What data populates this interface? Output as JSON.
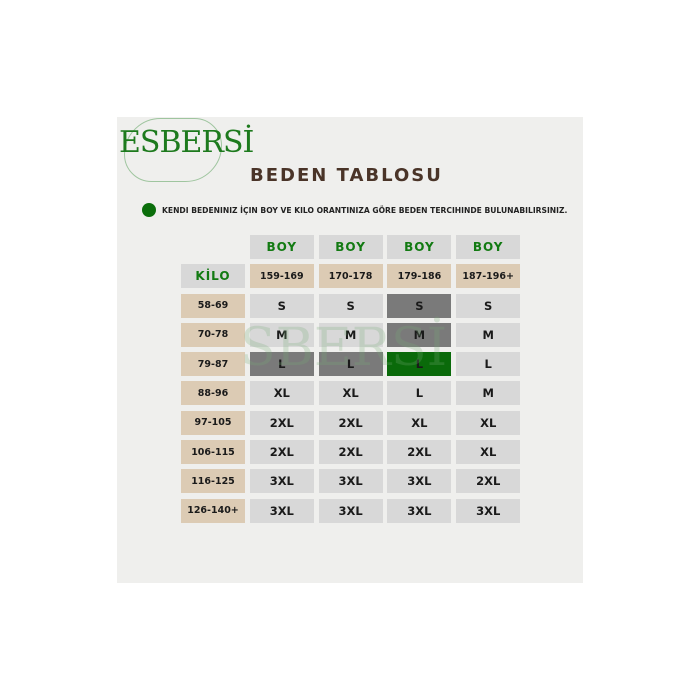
{
  "brand": {
    "logo_text": "ESBERSİ"
  },
  "title": "BEDEN TABLOSU",
  "note": "KENDI BEDENINIZ İÇIN BOY VE KILO ORANTINIZA GÖRE BEDEN TERCIHINDE BULUNABILIRSINIZ.",
  "colors": {
    "accent_green": "#0a6a0a",
    "highlight_gray": "#7a7a7a",
    "range_beige": "#dccbb4",
    "cell_gray": "#d8d8d8",
    "title_brown": "#4a3428"
  },
  "table": {
    "boy_label": "BOY",
    "kilo_label": "KİLO",
    "heights": [
      "159-169",
      "170-178",
      "179-186",
      "187-196+"
    ],
    "rows": [
      {
        "kilo": "58-69",
        "sizes": [
          "S",
          "S",
          "S",
          "S"
        ],
        "hl": [
          "",
          "",
          "dark",
          ""
        ]
      },
      {
        "kilo": "70-78",
        "sizes": [
          "M",
          "M",
          "M",
          "M"
        ],
        "hl": [
          "",
          "",
          "dark",
          ""
        ]
      },
      {
        "kilo": "79-87",
        "sizes": [
          "L",
          "L",
          "L",
          "L"
        ],
        "hl": [
          "dark",
          "dark",
          "green",
          ""
        ]
      },
      {
        "kilo": "88-96",
        "sizes": [
          "XL",
          "XL",
          "L",
          "M"
        ],
        "hl": [
          "",
          "",
          "",
          ""
        ]
      },
      {
        "kilo": "97-105",
        "sizes": [
          "2XL",
          "2XL",
          "XL",
          "XL"
        ],
        "hl": [
          "",
          "",
          "",
          ""
        ]
      },
      {
        "kilo": "106-115",
        "sizes": [
          "2XL",
          "2XL",
          "2XL",
          "XL"
        ],
        "hl": [
          "",
          "",
          "",
          ""
        ]
      },
      {
        "kilo": "116-125",
        "sizes": [
          "3XL",
          "3XL",
          "3XL",
          "2XL"
        ],
        "hl": [
          "",
          "",
          "",
          ""
        ]
      },
      {
        "kilo": "126-140+",
        "sizes": [
          "3XL",
          "3XL",
          "3XL",
          "3XL"
        ],
        "hl": [
          "",
          "",
          "",
          ""
        ]
      }
    ]
  }
}
